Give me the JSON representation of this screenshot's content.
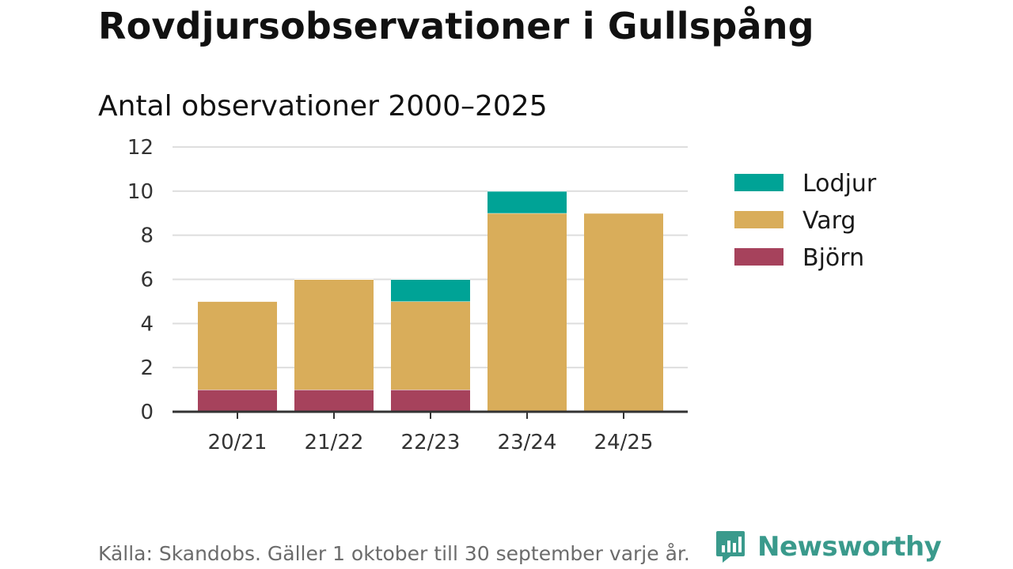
{
  "title": "Rovdjursobservationer i Gullspång",
  "subtitle": "Antal observationer 2000–2025",
  "footer": "Källa: Skandobs. Gäller 1 oktober till 30 september varje år.",
  "brand": {
    "name": "Newsworthy",
    "icon": "newsworthy-logo-icon",
    "color": "#3a9a8c"
  },
  "chart_data": {
    "type": "bar",
    "stacked": true,
    "categories": [
      "20/21",
      "21/22",
      "22/23",
      "23/24",
      "24/25"
    ],
    "series": [
      {
        "name": "Björn",
        "color": "#a6425c",
        "values": [
          1,
          1,
          1,
          0,
          0
        ]
      },
      {
        "name": "Varg",
        "color": "#d9ad5a",
        "values": [
          4,
          5,
          4,
          9,
          9
        ]
      },
      {
        "name": "Lodjur",
        "color": "#00a396",
        "values": [
          0,
          0,
          1,
          1,
          0
        ]
      }
    ],
    "legend_order": [
      "Lodjur",
      "Varg",
      "Björn"
    ],
    "legend_position": "right",
    "ylim": [
      0,
      12
    ],
    "yticks": [
      0,
      2,
      4,
      6,
      8,
      10,
      12
    ],
    "grid": true
  }
}
